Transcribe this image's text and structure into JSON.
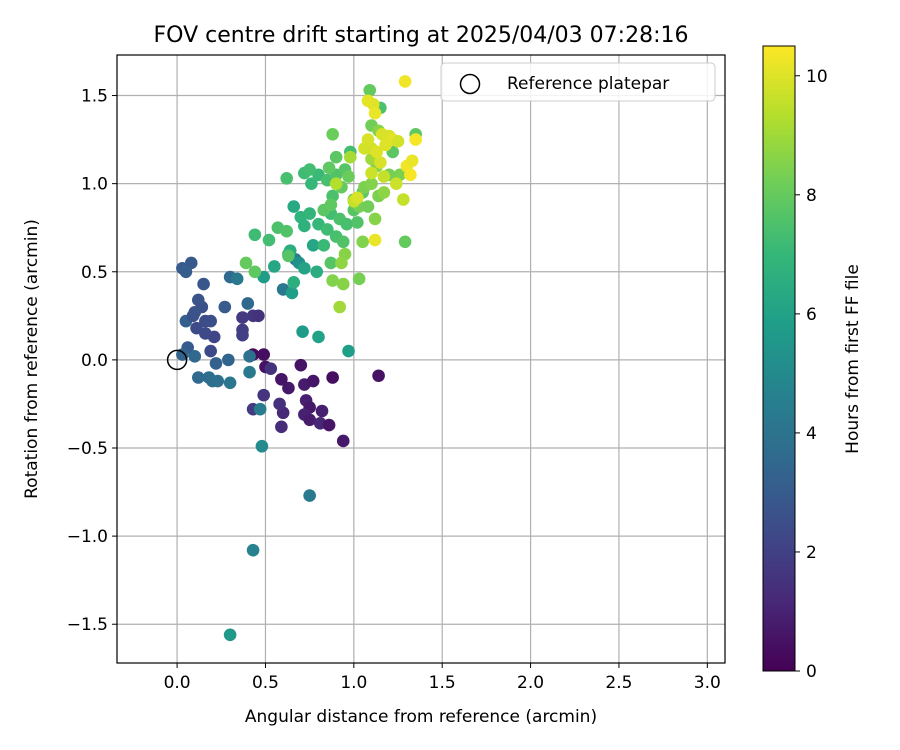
{
  "chart_data": {
    "type": "scatter",
    "title": "FOV centre drift starting at 2025/04/03 07:28:16",
    "xlabel": "Angular distance from reference (arcmin)",
    "ylabel": "Rotation from reference (arcmin)",
    "xlim": [
      -0.34,
      3.1
    ],
    "ylim": [
      -1.72,
      1.73
    ],
    "xticks": [
      "0.0",
      "0.5",
      "1.0",
      "1.5",
      "2.0",
      "2.5",
      "3.0"
    ],
    "yticks": [
      "−1.5",
      "−1.0",
      "−0.5",
      "0.0",
      "0.5",
      "1.0",
      "1.5"
    ],
    "grid": true,
    "legend": {
      "position": "top-right",
      "entries": [
        "Reference platepar"
      ]
    },
    "reference_point": {
      "x": 0.0,
      "y": 0.0
    },
    "colorbar": {
      "label": "Hours from first FF file",
      "range": [
        0,
        10.5
      ],
      "ticks": [
        "0",
        "2",
        "4",
        "6",
        "8",
        "10"
      ],
      "colormap": "viridis"
    },
    "points": [
      {
        "x": 0.43,
        "y": 0.03,
        "h": 0.3
      },
      {
        "x": 0.49,
        "y": 0.03,
        "h": 0.4
      },
      {
        "x": 0.5,
        "y": -0.04,
        "h": 0.5
      },
      {
        "x": 0.59,
        "y": -0.11,
        "h": 0.6
      },
      {
        "x": 0.63,
        "y": -0.16,
        "h": 0.7
      },
      {
        "x": 0.7,
        "y": -0.03,
        "h": 0.5
      },
      {
        "x": 0.72,
        "y": -0.14,
        "h": 0.8
      },
      {
        "x": 0.77,
        "y": -0.12,
        "h": 0.6
      },
      {
        "x": 0.73,
        "y": -0.23,
        "h": 0.9
      },
      {
        "x": 0.75,
        "y": -0.27,
        "h": 0.7
      },
      {
        "x": 0.72,
        "y": -0.31,
        "h": 1.0
      },
      {
        "x": 0.75,
        "y": -0.34,
        "h": 0.8
      },
      {
        "x": 0.82,
        "y": -0.29,
        "h": 0.9
      },
      {
        "x": 0.81,
        "y": -0.36,
        "h": 1.1
      },
      {
        "x": 0.86,
        "y": -0.37,
        "h": 0.6
      },
      {
        "x": 0.88,
        "y": -0.1,
        "h": 0.4
      },
      {
        "x": 0.94,
        "y": -0.46,
        "h": 0.7
      },
      {
        "x": 1.14,
        "y": -0.09,
        "h": 0.5
      },
      {
        "x": 0.6,
        "y": -0.3,
        "h": 1.2
      },
      {
        "x": 0.59,
        "y": -0.38,
        "h": 1.3
      },
      {
        "x": 0.58,
        "y": -0.25,
        "h": 1.4
      },
      {
        "x": 0.53,
        "y": -0.05,
        "h": 1.5
      },
      {
        "x": 0.49,
        "y": -0.2,
        "h": 1.6
      },
      {
        "x": 0.43,
        "y": 0.25,
        "h": 1.7
      },
      {
        "x": 0.46,
        "y": 0.25,
        "h": 1.5
      },
      {
        "x": 0.37,
        "y": 0.24,
        "h": 1.8
      },
      {
        "x": 0.37,
        "y": 0.17,
        "h": 1.9
      },
      {
        "x": 0.37,
        "y": 0.14,
        "h": 2.0
      },
      {
        "x": 0.43,
        "y": -0.28,
        "h": 1.8
      },
      {
        "x": 0.21,
        "y": 0.13,
        "h": 2.2
      },
      {
        "x": 0.19,
        "y": 0.05,
        "h": 2.3
      },
      {
        "x": 0.16,
        "y": 0.22,
        "h": 2.4
      },
      {
        "x": 0.19,
        "y": 0.22,
        "h": 2.5
      },
      {
        "x": 0.14,
        "y": 0.3,
        "h": 2.6
      },
      {
        "x": 0.12,
        "y": 0.34,
        "h": 2.7
      },
      {
        "x": 0.15,
        "y": 0.43,
        "h": 2.8
      },
      {
        "x": 0.08,
        "y": 0.55,
        "h": 2.9
      },
      {
        "x": 0.03,
        "y": 0.52,
        "h": 3.0
      },
      {
        "x": 0.05,
        "y": 0.5,
        "h": 3.1
      },
      {
        "x": 0.05,
        "y": 0.22,
        "h": 3.2
      },
      {
        "x": 0.09,
        "y": 0.25,
        "h": 2.6
      },
      {
        "x": 0.11,
        "y": 0.18,
        "h": 2.4
      },
      {
        "x": 0.16,
        "y": 0.15,
        "h": 2.3
      },
      {
        "x": 0.1,
        "y": 0.27,
        "h": 2.7
      },
      {
        "x": 0.06,
        "y": 0.07,
        "h": 3.0
      },
      {
        "x": 0.03,
        "y": 0.03,
        "h": 3.3
      },
      {
        "x": 0.1,
        "y": 0.02,
        "h": 3.5
      },
      {
        "x": 0.12,
        "y": -0.1,
        "h": 3.6
      },
      {
        "x": 0.18,
        "y": -0.1,
        "h": 3.7
      },
      {
        "x": 0.2,
        "y": -0.12,
        "h": 3.8
      },
      {
        "x": 0.22,
        "y": -0.02,
        "h": 3.2
      },
      {
        "x": 0.23,
        "y": -0.12,
        "h": 3.9
      },
      {
        "x": 0.3,
        "y": -0.13,
        "h": 4.1
      },
      {
        "x": 0.29,
        "y": 0.0,
        "h": 3.4
      },
      {
        "x": 0.27,
        "y": 0.3,
        "h": 3.0
      },
      {
        "x": 0.3,
        "y": 0.47,
        "h": 3.6
      },
      {
        "x": 0.34,
        "y": 0.46,
        "h": 4.2
      },
      {
        "x": 0.4,
        "y": 0.32,
        "h": 3.5
      },
      {
        "x": 0.41,
        "y": 0.02,
        "h": 3.9
      },
      {
        "x": 0.41,
        "y": -0.07,
        "h": 4.3
      },
      {
        "x": 0.47,
        "y": -0.28,
        "h": 4.4
      },
      {
        "x": 0.48,
        "y": -0.49,
        "h": 5.0
      },
      {
        "x": 0.43,
        "y": -1.08,
        "h": 4.6
      },
      {
        "x": 0.3,
        "y": -1.56,
        "h": 5.6
      },
      {
        "x": 0.75,
        "y": -0.77,
        "h": 4.3
      },
      {
        "x": 0.6,
        "y": 0.4,
        "h": 4.2
      },
      {
        "x": 0.67,
        "y": 0.57,
        "h": 4.5
      },
      {
        "x": 0.69,
        "y": 0.55,
        "h": 5.3
      },
      {
        "x": 0.71,
        "y": 0.16,
        "h": 5.7
      },
      {
        "x": 0.8,
        "y": 0.13,
        "h": 6.0
      },
      {
        "x": 0.97,
        "y": 0.05,
        "h": 5.9
      },
      {
        "x": 0.65,
        "y": 0.38,
        "h": 5.9
      },
      {
        "x": 0.49,
        "y": 0.47,
        "h": 5.8
      },
      {
        "x": 0.55,
        "y": 0.53,
        "h": 6.2
      },
      {
        "x": 0.63,
        "y": 0.6,
        "h": 6.3
      },
      {
        "x": 0.66,
        "y": 0.44,
        "h": 6.6
      },
      {
        "x": 0.64,
        "y": 0.62,
        "h": 6.6
      },
      {
        "x": 0.72,
        "y": 0.52,
        "h": 6.1
      },
      {
        "x": 0.79,
        "y": 0.5,
        "h": 6.5
      },
      {
        "x": 0.77,
        "y": 0.65,
        "h": 6.2
      },
      {
        "x": 0.83,
        "y": 0.65,
        "h": 7.1
      },
      {
        "x": 0.66,
        "y": 0.87,
        "h": 6.3
      },
      {
        "x": 0.7,
        "y": 0.81,
        "h": 6.8
      },
      {
        "x": 0.72,
        "y": 0.76,
        "h": 6.7
      },
      {
        "x": 0.75,
        "y": 0.83,
        "h": 6.9
      },
      {
        "x": 0.8,
        "y": 0.77,
        "h": 7.0
      },
      {
        "x": 0.85,
        "y": 0.74,
        "h": 7.2
      },
      {
        "x": 0.87,
        "y": 0.83,
        "h": 7.3
      },
      {
        "x": 0.9,
        "y": 0.7,
        "h": 7.4
      },
      {
        "x": 0.92,
        "y": 0.8,
        "h": 7.5
      },
      {
        "x": 0.94,
        "y": 0.67,
        "h": 7.6
      },
      {
        "x": 0.96,
        "y": 0.77,
        "h": 7.4
      },
      {
        "x": 1.0,
        "y": 0.85,
        "h": 7.7
      },
      {
        "x": 1.02,
        "y": 0.78,
        "h": 7.6
      },
      {
        "x": 0.76,
        "y": 1.0,
        "h": 7.0
      },
      {
        "x": 0.8,
        "y": 1.05,
        "h": 7.1
      },
      {
        "x": 0.72,
        "y": 1.06,
        "h": 7.2
      },
      {
        "x": 0.75,
        "y": 1.08,
        "h": 7.3
      },
      {
        "x": 0.85,
        "y": 1.02,
        "h": 7.4
      },
      {
        "x": 0.88,
        "y": 0.93,
        "h": 7.5
      },
      {
        "x": 0.9,
        "y": 1.05,
        "h": 7.6
      },
      {
        "x": 0.95,
        "y": 1.08,
        "h": 7.7
      },
      {
        "x": 0.98,
        "y": 1.18,
        "h": 7.3
      },
      {
        "x": 1.05,
        "y": 0.95,
        "h": 7.8
      },
      {
        "x": 0.62,
        "y": 1.03,
        "h": 7.4
      },
      {
        "x": 0.44,
        "y": 0.71,
        "h": 7.2
      },
      {
        "x": 0.52,
        "y": 0.68,
        "h": 7.3
      },
      {
        "x": 0.57,
        "y": 0.75,
        "h": 7.5
      },
      {
        "x": 0.62,
        "y": 0.73,
        "h": 7.6
      },
      {
        "x": 0.63,
        "y": 0.59,
        "h": 7.7
      },
      {
        "x": 0.39,
        "y": 0.55,
        "h": 8.0
      },
      {
        "x": 0.44,
        "y": 0.5,
        "h": 7.9
      },
      {
        "x": 0.87,
        "y": 0.55,
        "h": 7.7
      },
      {
        "x": 0.83,
        "y": 0.85,
        "h": 7.8
      },
      {
        "x": 0.87,
        "y": 0.88,
        "h": 7.9
      },
      {
        "x": 0.9,
        "y": 1.15,
        "h": 7.8
      },
      {
        "x": 0.86,
        "y": 1.09,
        "h": 7.9
      },
      {
        "x": 0.93,
        "y": 0.98,
        "h": 8.0
      },
      {
        "x": 0.97,
        "y": 1.04,
        "h": 8.1
      },
      {
        "x": 1.0,
        "y": 0.91,
        "h": 8.2
      },
      {
        "x": 1.03,
        "y": 0.87,
        "h": 8.3
      },
      {
        "x": 1.06,
        "y": 0.98,
        "h": 8.4
      },
      {
        "x": 1.08,
        "y": 0.87,
        "h": 8.2
      },
      {
        "x": 1.1,
        "y": 1.0,
        "h": 8.5
      },
      {
        "x": 1.12,
        "y": 0.8,
        "h": 8.6
      },
      {
        "x": 1.14,
        "y": 0.93,
        "h": 8.4
      },
      {
        "x": 1.17,
        "y": 0.95,
        "h": 8.7
      },
      {
        "x": 1.13,
        "y": 1.1,
        "h": 8.5
      },
      {
        "x": 1.2,
        "y": 1.05,
        "h": 8.3
      },
      {
        "x": 1.22,
        "y": 1.18,
        "h": 7.8
      },
      {
        "x": 1.15,
        "y": 1.43,
        "h": 7.5
      },
      {
        "x": 1.09,
        "y": 1.53,
        "h": 8.0
      },
      {
        "x": 1.1,
        "y": 1.33,
        "h": 8.2
      },
      {
        "x": 1.14,
        "y": 1.3,
        "h": 8.6
      },
      {
        "x": 0.88,
        "y": 1.28,
        "h": 8.1
      },
      {
        "x": 1.29,
        "y": 0.67,
        "h": 8.0
      },
      {
        "x": 1.35,
        "y": 1.28,
        "h": 7.9
      },
      {
        "x": 1.26,
        "y": 1.05,
        "h": 8.4
      },
      {
        "x": 1.05,
        "y": 0.67,
        "h": 8.5
      },
      {
        "x": 0.95,
        "y": 0.6,
        "h": 8.6
      },
      {
        "x": 0.93,
        "y": 0.55,
        "h": 8.7
      },
      {
        "x": 0.88,
        "y": 0.45,
        "h": 8.5
      },
      {
        "x": 0.94,
        "y": 0.43,
        "h": 8.6
      },
      {
        "x": 1.03,
        "y": 0.46,
        "h": 8.3
      },
      {
        "x": 1.1,
        "y": 1.14,
        "h": 9.0
      },
      {
        "x": 0.98,
        "y": 1.15,
        "h": 9.1
      },
      {
        "x": 0.92,
        "y": 0.3,
        "h": 9.0
      },
      {
        "x": 0.9,
        "y": 1.0,
        "h": 9.3
      },
      {
        "x": 1.0,
        "y": 0.9,
        "h": 9.6
      },
      {
        "x": 1.12,
        "y": 0.68,
        "h": 10.2
      },
      {
        "x": 1.1,
        "y": 1.2,
        "h": 9.8
      },
      {
        "x": 1.15,
        "y": 1.12,
        "h": 9.9
      },
      {
        "x": 1.13,
        "y": 1.18,
        "h": 10.0
      },
      {
        "x": 1.2,
        "y": 1.27,
        "h": 9.9
      },
      {
        "x": 1.22,
        "y": 1.25,
        "h": 10.1
      },
      {
        "x": 1.25,
        "y": 1.24,
        "h": 9.8
      },
      {
        "x": 1.24,
        "y": 1.0,
        "h": 9.7
      },
      {
        "x": 1.28,
        "y": 0.91,
        "h": 9.6
      },
      {
        "x": 1.3,
        "y": 1.1,
        "h": 10.3
      },
      {
        "x": 1.32,
        "y": 1.05,
        "h": 10.4
      },
      {
        "x": 1.33,
        "y": 1.13,
        "h": 10.2
      },
      {
        "x": 1.35,
        "y": 1.25,
        "h": 10.4
      },
      {
        "x": 1.11,
        "y": 1.45,
        "h": 10.0
      },
      {
        "x": 1.08,
        "y": 1.47,
        "h": 10.1
      },
      {
        "x": 1.29,
        "y": 1.58,
        "h": 10.3
      },
      {
        "x": 1.12,
        "y": 1.4,
        "h": 10.2
      },
      {
        "x": 1.16,
        "y": 1.28,
        "h": 9.9
      },
      {
        "x": 1.18,
        "y": 1.22,
        "h": 10.0
      },
      {
        "x": 1.06,
        "y": 1.2,
        "h": 9.8
      },
      {
        "x": 1.1,
        "y": 1.06,
        "h": 9.7
      },
      {
        "x": 1.17,
        "y": 1.04,
        "h": 9.6
      },
      {
        "x": 1.02,
        "y": 0.92,
        "h": 9.9
      },
      {
        "x": 1.08,
        "y": 1.25,
        "h": 9.9
      }
    ]
  }
}
